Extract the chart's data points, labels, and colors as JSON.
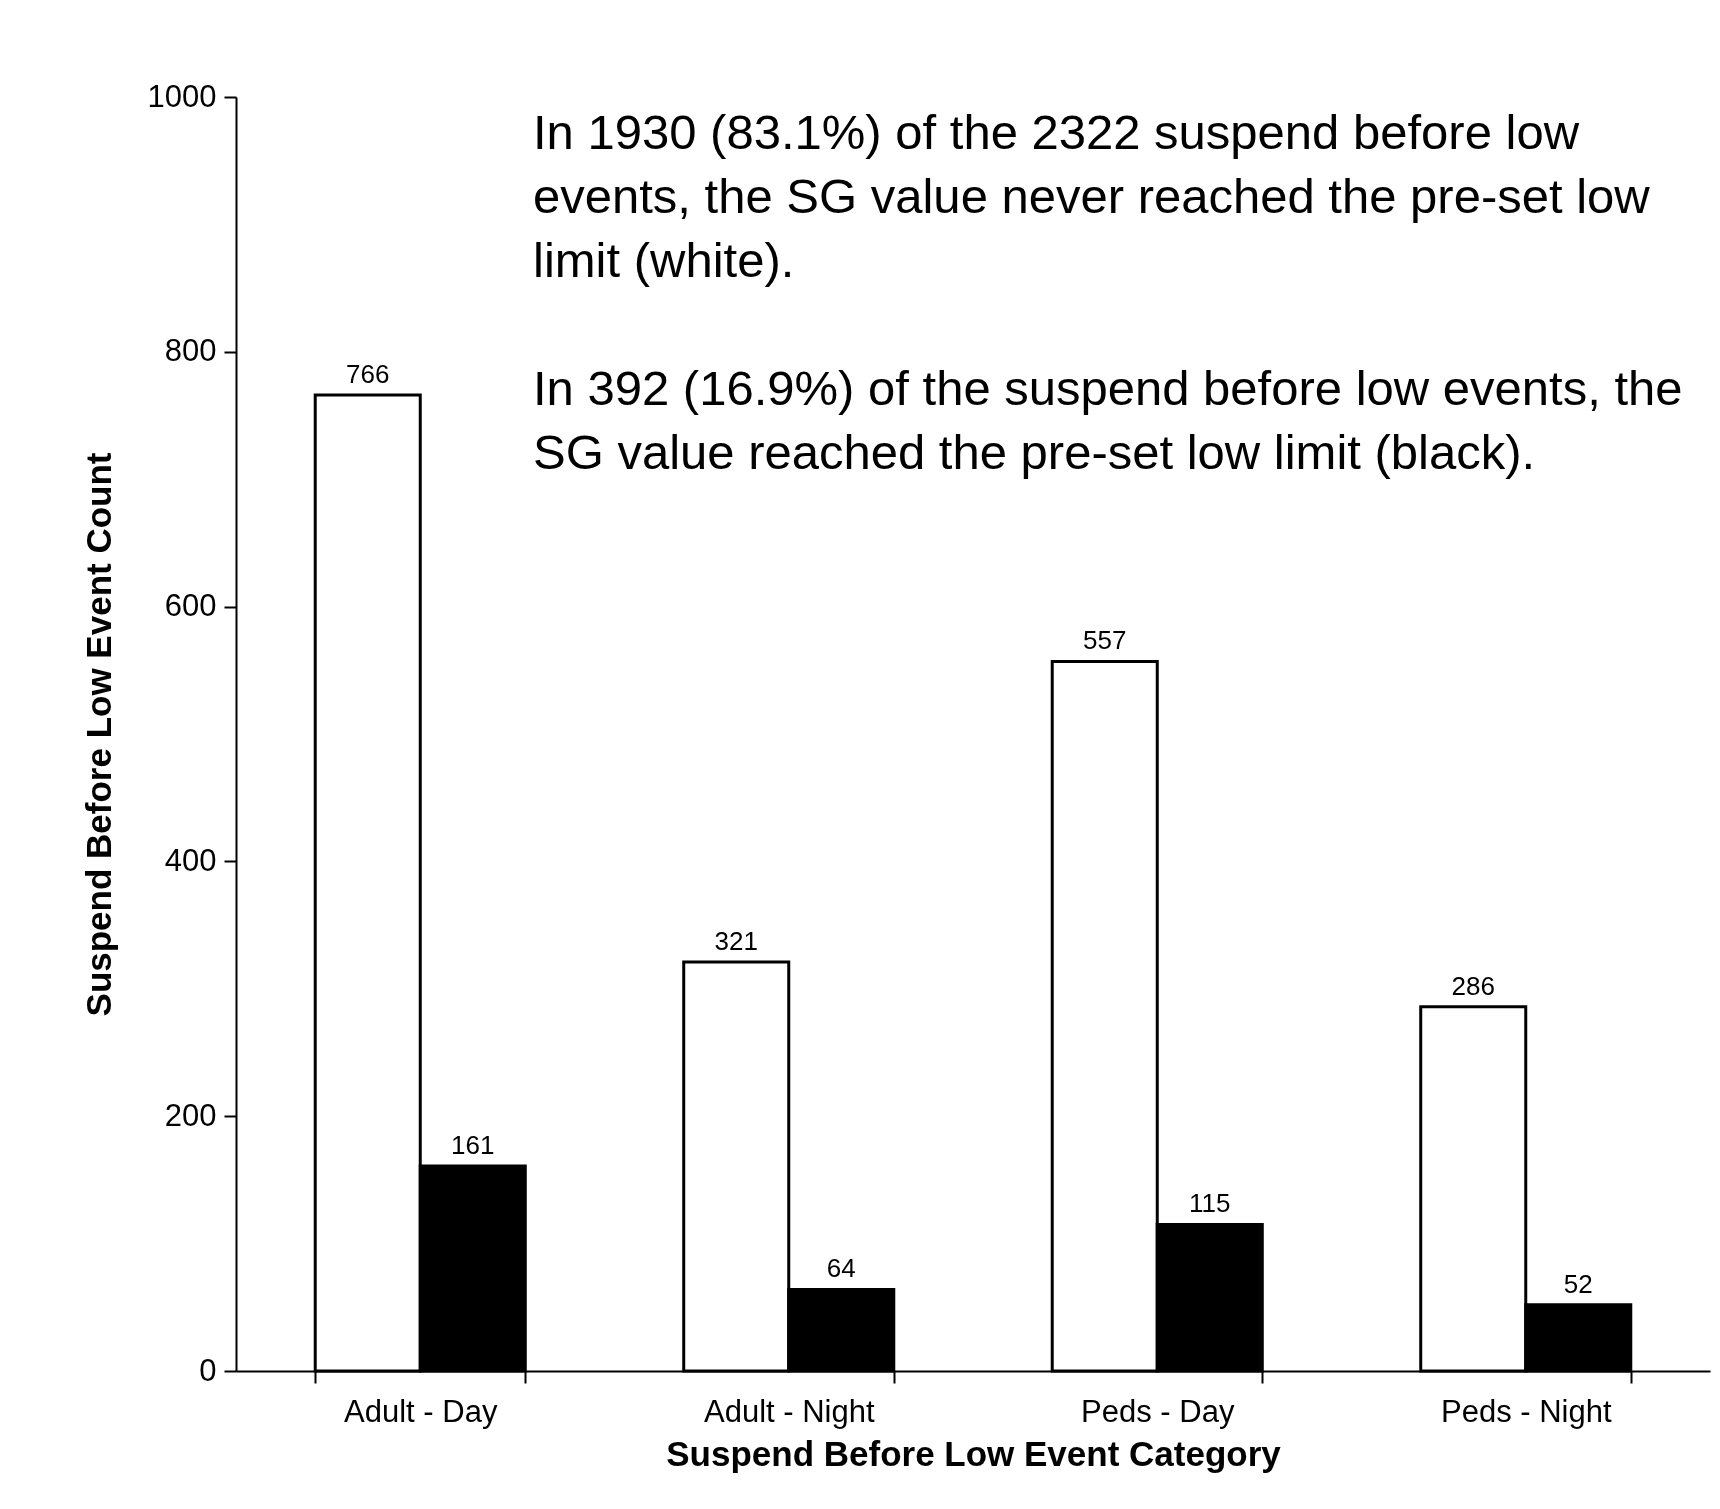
{
  "chart_data": {
    "type": "bar",
    "xlabel": "Suspend Before Low Event Category",
    "ylabel": "Suspend Before Low Event Count",
    "categories": [
      "Adult - Day",
      "Adult - Night",
      "Peds - Day",
      "Peds - Night"
    ],
    "series": [
      {
        "color": "#ffffff",
        "values": [
          766,
          321,
          557,
          286
        ]
      },
      {
        "color": "#000000",
        "values": [
          161,
          64,
          115,
          52
        ]
      }
    ],
    "ylim": [
      0,
      1000
    ],
    "yticks": [
      0,
      200,
      400,
      600,
      800,
      1000
    ],
    "data_labels": true,
    "annotations": [
      "In 1930 (83.1%) of the 2322 suspend before low events, the SG value never reached the pre-set low limit (white).",
      "In 392 (16.9%) of the suspend before low events, the SG value reached the pre-set low limit (black)."
    ]
  }
}
